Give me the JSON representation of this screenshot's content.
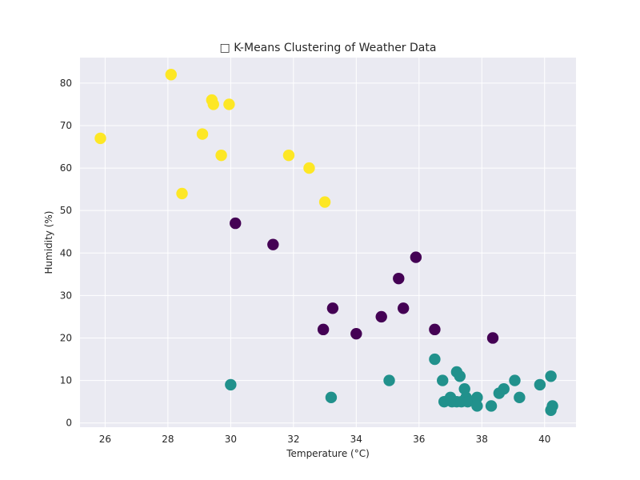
{
  "chart_data": {
    "type": "scatter",
    "title": "□ K-Means Clustering of Weather Data",
    "xlabel": "Temperature (°C)",
    "ylabel": "Humidity (%)",
    "xlim": [
      25.2,
      41.0
    ],
    "ylim": [
      -1,
      86
    ],
    "xticks": [
      26,
      28,
      30,
      32,
      34,
      36,
      38,
      40
    ],
    "yticks": [
      0,
      10,
      20,
      30,
      40,
      50,
      60,
      70,
      80
    ],
    "grid": true,
    "background_color": "#eaeaf2",
    "grid_color": "#ffffff",
    "series": [
      {
        "color": "#fde725",
        "points": [
          [
            25.85,
            67
          ],
          [
            28.1,
            82
          ],
          [
            28.45,
            54
          ],
          [
            29.1,
            68
          ],
          [
            29.4,
            76
          ],
          [
            29.45,
            75
          ],
          [
            29.7,
            63
          ],
          [
            29.95,
            75
          ],
          [
            31.85,
            63
          ],
          [
            32.5,
            60
          ],
          [
            33.0,
            52
          ]
        ]
      },
      {
        "color": "#440154",
        "points": [
          [
            30.15,
            47
          ],
          [
            31.35,
            42
          ],
          [
            32.95,
            22
          ],
          [
            33.25,
            27
          ],
          [
            34.0,
            21
          ],
          [
            34.8,
            25
          ],
          [
            35.35,
            34
          ],
          [
            35.5,
            27
          ],
          [
            35.9,
            39
          ],
          [
            36.5,
            22
          ],
          [
            38.35,
            20
          ]
        ]
      },
      {
        "color": "#21918c",
        "points": [
          [
            30.0,
            9
          ],
          [
            33.2,
            6
          ],
          [
            35.05,
            10
          ],
          [
            36.5,
            15
          ],
          [
            36.75,
            10
          ],
          [
            36.8,
            5
          ],
          [
            37.0,
            6
          ],
          [
            37.05,
            5
          ],
          [
            37.2,
            12
          ],
          [
            37.2,
            5
          ],
          [
            37.3,
            11
          ],
          [
            37.35,
            5
          ],
          [
            37.45,
            8
          ],
          [
            37.5,
            6
          ],
          [
            37.55,
            5
          ],
          [
            37.8,
            5
          ],
          [
            37.85,
            6
          ],
          [
            37.85,
            4
          ],
          [
            38.3,
            4
          ],
          [
            38.55,
            7
          ],
          [
            38.7,
            8
          ],
          [
            39.05,
            10
          ],
          [
            39.2,
            6
          ],
          [
            39.85,
            9
          ],
          [
            40.2,
            3
          ],
          [
            40.2,
            11
          ],
          [
            40.25,
            4
          ]
        ]
      }
    ]
  }
}
